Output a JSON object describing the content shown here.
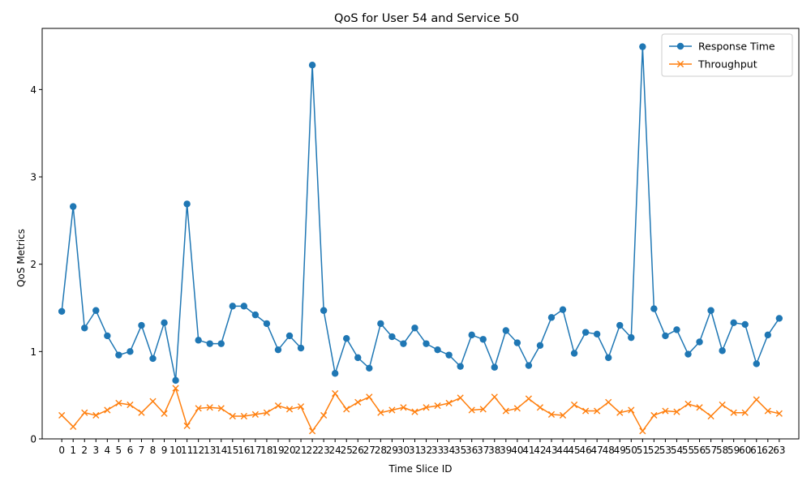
{
  "chart_data": {
    "type": "line",
    "title": "QoS for User 54 and Service 50",
    "xlabel": "Time Slice ID",
    "ylabel": "QoS Metrics",
    "x": [
      0,
      1,
      2,
      3,
      4,
      5,
      6,
      7,
      8,
      9,
      10,
      11,
      12,
      13,
      14,
      15,
      16,
      17,
      18,
      19,
      20,
      21,
      22,
      23,
      24,
      25,
      26,
      27,
      28,
      29,
      30,
      31,
      32,
      33,
      34,
      35,
      36,
      37,
      38,
      39,
      40,
      41,
      42,
      43,
      44,
      45,
      46,
      47,
      48,
      49,
      50,
      51,
      52,
      53,
      54,
      55,
      56,
      57,
      58,
      59,
      60,
      61,
      62,
      63
    ],
    "xticks": [
      "0",
      "1",
      "2",
      "3",
      "4",
      "5",
      "6",
      "7",
      "8",
      "9",
      "10",
      "11",
      "12",
      "13",
      "14",
      "15",
      "16",
      "17",
      "18",
      "19",
      "20",
      "21",
      "22",
      "23",
      "24",
      "25",
      "26",
      "27",
      "28",
      "29",
      "30",
      "31",
      "32",
      "33",
      "34",
      "35",
      "36",
      "37",
      "38",
      "39",
      "40",
      "41",
      "42",
      "43",
      "44",
      "45",
      "46",
      "47",
      "48",
      "49",
      "50",
      "51",
      "52",
      "53",
      "54",
      "55",
      "56",
      "57",
      "58",
      "59",
      "60",
      "61",
      "62",
      "63"
    ],
    "yticks": [
      "0",
      "1",
      "2",
      "3",
      "4"
    ],
    "ylim": [
      0,
      4.7
    ],
    "grid": false,
    "legend_position": "top-right",
    "series": [
      {
        "name": "Response Time",
        "color": "#1f77b4",
        "marker": "circle",
        "values": [
          1.46,
          2.66,
          1.27,
          1.47,
          1.18,
          0.96,
          1.0,
          1.3,
          0.92,
          1.33,
          0.67,
          2.69,
          1.13,
          1.09,
          1.09,
          1.52,
          1.52,
          1.42,
          1.32,
          1.02,
          1.18,
          1.04,
          4.28,
          1.47,
          0.75,
          1.15,
          0.93,
          0.81,
          1.32,
          1.17,
          1.09,
          1.27,
          1.09,
          1.02,
          0.96,
          0.83,
          1.19,
          1.14,
          0.82,
          1.24,
          1.1,
          0.84,
          1.07,
          1.39,
          1.48,
          0.98,
          1.22,
          1.2,
          0.93,
          1.3,
          1.16,
          4.49,
          1.49,
          1.18,
          1.25,
          0.97,
          1.11,
          1.47,
          1.01,
          1.33,
          1.31,
          0.86,
          1.19,
          1.38
        ]
      },
      {
        "name": "Throughput",
        "color": "#ff7f0e",
        "marker": "x",
        "values": [
          0.27,
          0.14,
          0.3,
          0.27,
          0.33,
          0.41,
          0.39,
          0.3,
          0.43,
          0.29,
          0.58,
          0.15,
          0.35,
          0.36,
          0.35,
          0.26,
          0.26,
          0.28,
          0.3,
          0.38,
          0.34,
          0.37,
          0.09,
          0.27,
          0.52,
          0.34,
          0.42,
          0.48,
          0.3,
          0.33,
          0.36,
          0.31,
          0.36,
          0.38,
          0.41,
          0.47,
          0.33,
          0.34,
          0.48,
          0.32,
          0.35,
          0.46,
          0.36,
          0.28,
          0.27,
          0.39,
          0.32,
          0.32,
          0.42,
          0.3,
          0.33,
          0.09,
          0.27,
          0.32,
          0.31,
          0.4,
          0.36,
          0.26,
          0.39,
          0.3,
          0.3,
          0.45,
          0.32,
          0.29
        ]
      }
    ]
  }
}
